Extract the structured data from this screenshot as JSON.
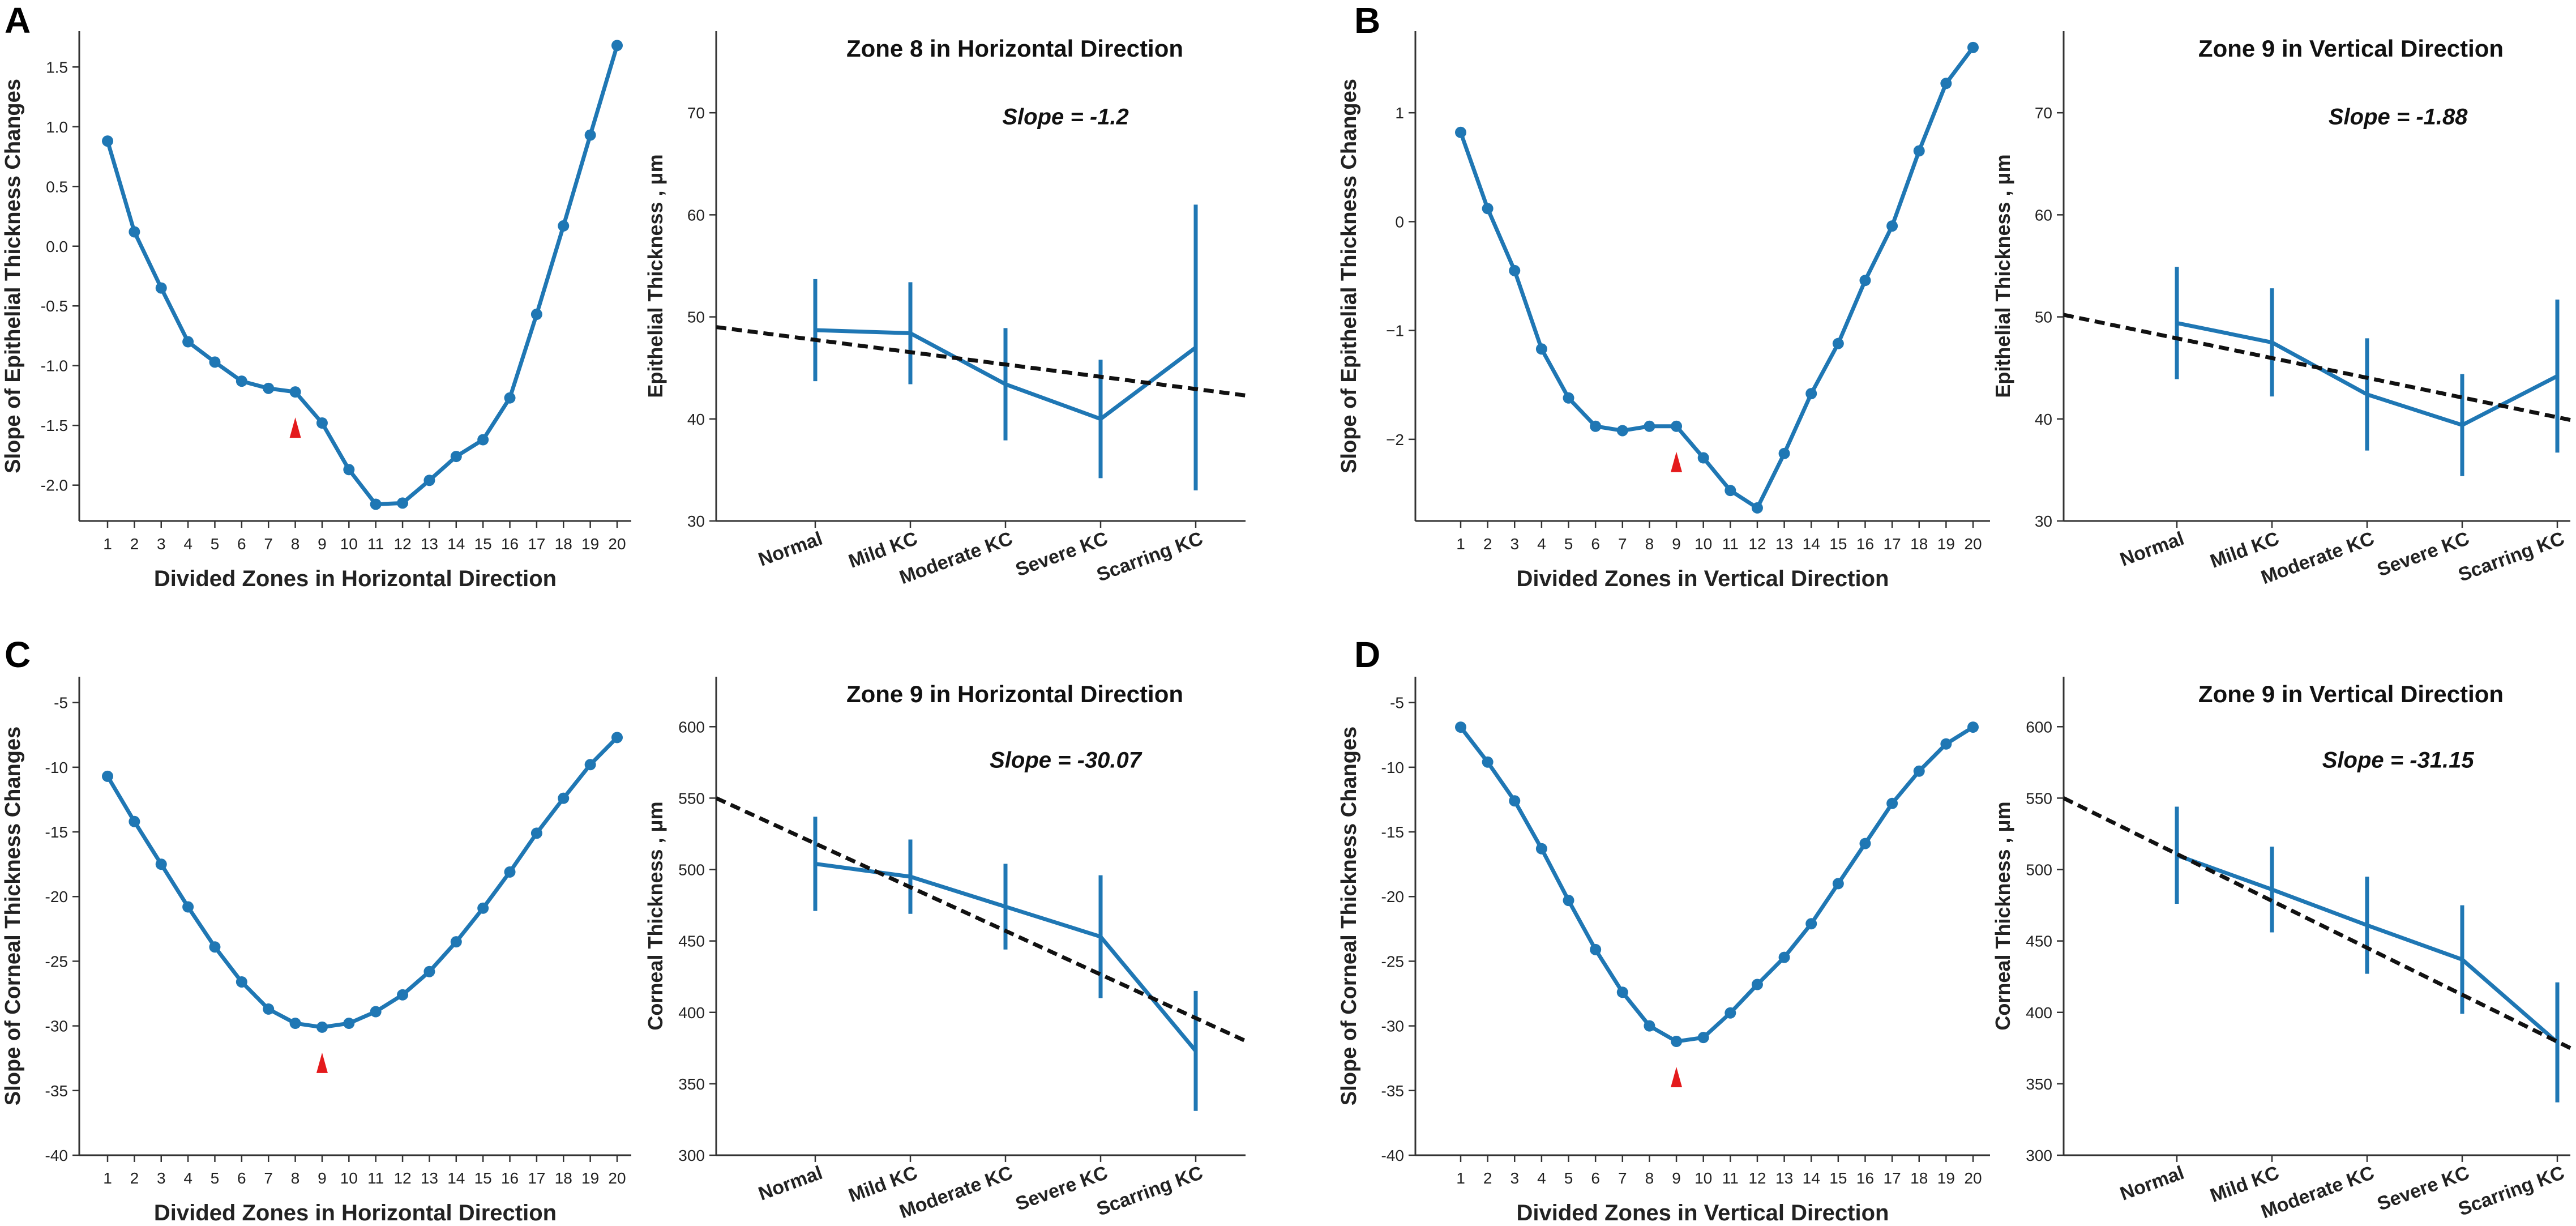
{
  "colors": {
    "series": "#1f77b4",
    "marker": "#e41a1c",
    "trend": "#111111",
    "axis": "#333333"
  },
  "chart_data": [
    {
      "id": "A-left",
      "panel": "A",
      "type": "line",
      "x": [
        1,
        2,
        3,
        4,
        5,
        6,
        7,
        8,
        9,
        10,
        11,
        12,
        13,
        14,
        15,
        16,
        17,
        18,
        19,
        20
      ],
      "x_ticks": [
        "1",
        "2",
        "3",
        "4",
        "5",
        "6",
        "7",
        "8",
        "9",
        "10",
        "11",
        "12",
        "13",
        "14",
        "15",
        "16",
        "17",
        "18",
        "19",
        "20"
      ],
      "values": [
        0.88,
        0.12,
        -0.35,
        -0.8,
        -0.97,
        -1.13,
        -1.19,
        -1.22,
        -1.48,
        -1.87,
        -2.16,
        -2.15,
        -1.96,
        -1.76,
        -1.62,
        -1.27,
        -0.57,
        0.17,
        0.93,
        1.68
      ],
      "ylim": [
        -2.3,
        1.8
      ],
      "y_ticks": [
        -2.0,
        -1.5,
        -1.0,
        -0.5,
        0.0,
        0.5,
        1.0,
        1.5
      ],
      "y_tick_labels": [
        "-2.0",
        "-1.5",
        "-1.0",
        "-0.5",
        "0.0",
        "0.5",
        "1.0",
        "1.5"
      ],
      "marker_x": 8,
      "xlabel": "Divided Zones in Horizontal Direction",
      "ylabel": "Slope of Epithelial Thickness Changes"
    },
    {
      "id": "A-right",
      "panel": "A",
      "type": "errorbar-line",
      "title": "Zone 8 in Horizontal Direction",
      "categories": [
        "Normal",
        "Mild KC",
        "Moderate KC",
        "Severe KC",
        "Scarring KC"
      ],
      "values": [
        48.7,
        48.4,
        43.4,
        40.0,
        47.0
      ],
      "err": [
        5.0,
        5.0,
        5.5,
        5.8,
        14.0
      ],
      "trend": [
        49.0,
        42.3
      ],
      "ylim": [
        30,
        78
      ],
      "y_ticks": [
        30,
        40,
        50,
        60,
        70
      ],
      "y_tick_labels": [
        "30",
        "40",
        "50",
        "60",
        "70"
      ],
      "ylabel": "Epithelial Thickness , μm",
      "slope_label": "Slope  = -1.2"
    },
    {
      "id": "B-left",
      "panel": "B",
      "type": "line",
      "x": [
        1,
        2,
        3,
        4,
        5,
        6,
        7,
        8,
        9,
        10,
        11,
        12,
        13,
        14,
        15,
        16,
        17,
        18,
        19,
        20
      ],
      "x_ticks": [
        "1",
        "2",
        "3",
        "4",
        "5",
        "6",
        "7",
        "8",
        "9",
        "10",
        "11",
        "12",
        "13",
        "14",
        "15",
        "16",
        "17",
        "18",
        "19",
        "20"
      ],
      "values": [
        0.82,
        0.12,
        -0.45,
        -1.17,
        -1.62,
        -1.88,
        -1.92,
        -1.88,
        -1.88,
        -2.17,
        -2.47,
        -2.63,
        -2.13,
        -1.58,
        -1.12,
        -0.54,
        -0.04,
        0.65,
        1.27,
        1.6
      ],
      "ylim": [
        -2.75,
        1.75
      ],
      "y_ticks": [
        -2,
        -1,
        0,
        1
      ],
      "y_tick_labels": [
        "−2",
        "−1",
        "0",
        "1"
      ],
      "marker_x": 9,
      "xlabel": "Divided Zones in Vertical Direction",
      "ylabel": "Slope of Epithelial Thickness Changes"
    },
    {
      "id": "B-right",
      "panel": "B",
      "type": "errorbar-line",
      "title": "Zone 9 in Vertical Direction",
      "categories": [
        "Normal",
        "Mild KC",
        "Moderate KC",
        "Severe KC",
        "Scarring KC"
      ],
      "values": [
        49.4,
        47.5,
        42.4,
        39.4,
        44.2
      ],
      "err": [
        5.5,
        5.3,
        5.5,
        5.0,
        7.5
      ],
      "trend": [
        50.2,
        39.9
      ],
      "ylim": [
        30,
        78
      ],
      "y_ticks": [
        30,
        40,
        50,
        60,
        70
      ],
      "y_tick_labels": [
        "30",
        "40",
        "50",
        "60",
        "70"
      ],
      "ylabel": "Epithelial Thickness , μm",
      "slope_label": "Slope = -1.88"
    },
    {
      "id": "C-left",
      "panel": "C",
      "type": "line",
      "x": [
        1,
        2,
        3,
        4,
        5,
        6,
        7,
        8,
        9,
        10,
        11,
        12,
        13,
        14,
        15,
        16,
        17,
        18,
        19,
        20
      ],
      "x_ticks": [
        "1",
        "2",
        "3",
        "4",
        "5",
        "6",
        "7",
        "8",
        "9",
        "10",
        "11",
        "12",
        "13",
        "14",
        "15",
        "16",
        "17",
        "18",
        "19",
        "20"
      ],
      "values": [
        -10.7,
        -14.2,
        -17.5,
        -20.8,
        -23.9,
        -26.6,
        -28.7,
        -29.8,
        -30.1,
        -29.8,
        -28.9,
        -27.6,
        -25.8,
        -23.5,
        -20.9,
        -18.1,
        -15.1,
        -12.4,
        -9.8,
        -7.7
      ],
      "ylim": [
        -40,
        -3
      ],
      "y_ticks": [
        -40,
        -35,
        -30,
        -25,
        -20,
        -15,
        -10,
        -5
      ],
      "y_tick_labels": [
        "-40",
        "-35",
        "-30",
        "-25",
        "-20",
        "-15",
        "-10",
        "-5"
      ],
      "marker_x": 9,
      "xlabel": "Divided Zones in Horizontal Direction",
      "ylabel": "Slope of Corneal Thickness Changes"
    },
    {
      "id": "C-right",
      "panel": "C",
      "type": "errorbar-line",
      "title": "Zone 9 in Horizontal Direction",
      "categories": [
        "Normal",
        "Mild KC",
        "Moderate KC",
        "Severe KC",
        "Scarring KC"
      ],
      "values": [
        504,
        495,
        474,
        453,
        373
      ],
      "err": [
        33,
        26,
        30,
        43,
        42
      ],
      "trend": [
        550,
        380
      ],
      "ylim": [
        300,
        635
      ],
      "y_ticks": [
        300,
        350,
        400,
        450,
        500,
        550,
        600
      ],
      "y_tick_labels": [
        "300",
        "350",
        "400",
        "450",
        "500",
        "550",
        "600"
      ],
      "ylabel": "Corneal Thickness , μm",
      "slope_label": "Slope = -30.07"
    },
    {
      "id": "D-left",
      "panel": "D",
      "type": "line",
      "x": [
        1,
        2,
        3,
        4,
        5,
        6,
        7,
        8,
        9,
        10,
        11,
        12,
        13,
        14,
        15,
        16,
        17,
        18,
        19,
        20
      ],
      "x_ticks": [
        "1",
        "2",
        "3",
        "4",
        "5",
        "6",
        "7",
        "8",
        "9",
        "10",
        "11",
        "12",
        "13",
        "14",
        "15",
        "16",
        "17",
        "18",
        "19",
        "20"
      ],
      "values": [
        -6.9,
        -9.6,
        -12.6,
        -16.3,
        -20.3,
        -24.1,
        -27.4,
        -30.0,
        -31.2,
        -30.9,
        -29.0,
        -26.8,
        -24.7,
        -22.1,
        -19.0,
        -15.9,
        -12.8,
        -10.3,
        -8.2,
        -6.9
      ],
      "ylim": [
        -40,
        -3
      ],
      "y_ticks": [
        -40,
        -35,
        -30,
        -25,
        -20,
        -15,
        -10,
        -5
      ],
      "y_tick_labels": [
        "-40",
        "-35",
        "-30",
        "-25",
        "-20",
        "-15",
        "-10",
        "-5"
      ],
      "marker_x": 9,
      "xlabel": "Divided Zones in Vertical Direction",
      "ylabel": "Slope of Corneal Thickness Changes"
    },
    {
      "id": "D-right",
      "panel": "D",
      "type": "errorbar-line",
      "title": "Zone 9 in Vertical Direction",
      "categories": [
        "Normal",
        "Mild KC",
        "Moderate KC",
        "Severe KC",
        "Scarring KC"
      ],
      "values": [
        510,
        486,
        461,
        437,
        379
      ],
      "err": [
        34,
        30,
        34,
        38,
        42
      ],
      "trend": [
        550,
        375
      ],
      "ylim": [
        300,
        635
      ],
      "y_ticks": [
        300,
        350,
        400,
        450,
        500,
        550,
        600
      ],
      "y_tick_labels": [
        "300",
        "350",
        "400",
        "450",
        "500",
        "550",
        "600"
      ],
      "ylabel": "Corneal Thickness , μm",
      "slope_label": "Slope = -31.15"
    }
  ],
  "panel_letters": [
    "A",
    "B",
    "C",
    "D"
  ]
}
